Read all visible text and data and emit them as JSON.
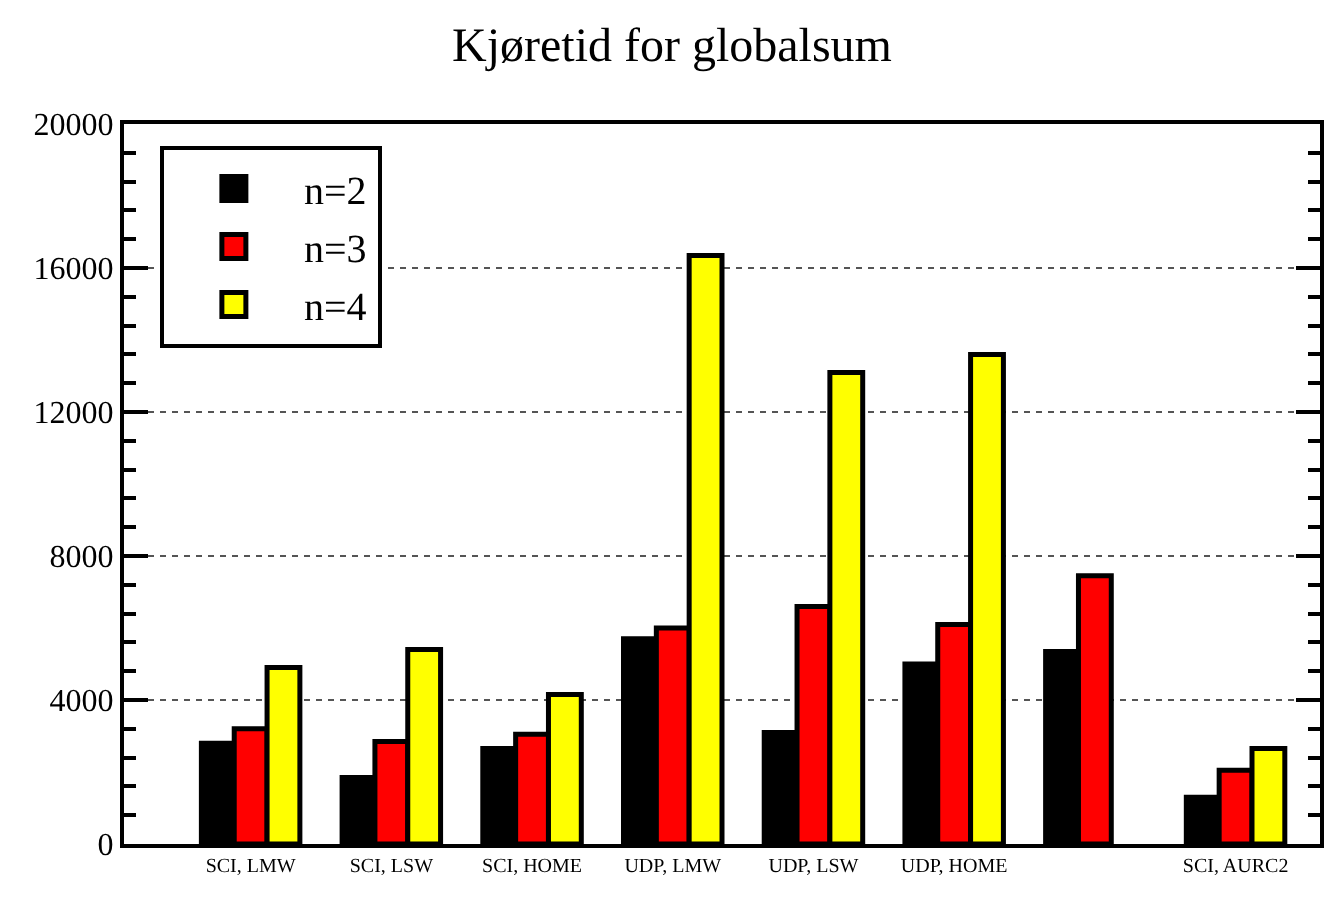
{
  "chart_data": {
    "type": "bar",
    "title": "Kjøretid for globalsum",
    "categories": [
      "SCI, LMW",
      "SCI, LSW",
      "SCI, HOME",
      "UDP, LMW",
      "UDP, LSW",
      "UDP, HOME",
      null,
      "SCI, AURC2"
    ],
    "series": [
      {
        "name": "n=2",
        "color": "#000000",
        "values": [
          2800,
          1850,
          2650,
          5700,
          3100,
          5000,
          5350,
          1300
        ]
      },
      {
        "name": "n=3",
        "color": "#ff0000",
        "values": [
          3200,
          2850,
          3050,
          6000,
          6600,
          6100,
          7450,
          2050
        ]
      },
      {
        "name": "n=4",
        "color": "#ffff00",
        "values": [
          4900,
          5400,
          4150,
          16350,
          13100,
          13600,
          null,
          2650
        ]
      }
    ],
    "ylim": [
      0,
      20000
    ],
    "yticks": [
      0,
      4000,
      8000,
      12000,
      16000,
      20000
    ],
    "grid": "y",
    "legend": "top left"
  }
}
